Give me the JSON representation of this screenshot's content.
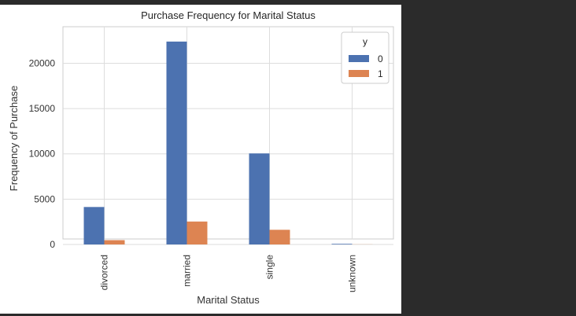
{
  "chart_data": {
    "type": "bar",
    "title": "Purchase Frequency for Marital Status",
    "xlabel": "Marital Status",
    "ylabel": "Frequency of Purchase",
    "categories": [
      "divorced",
      "married",
      "single",
      "unknown"
    ],
    "series": [
      {
        "name": "0",
        "values": [
          4136,
          22396,
          10049,
          68
        ],
        "color": "#4c72b0"
      },
      {
        "name": "1",
        "values": [
          476,
          2532,
          1620,
          12
        ],
        "color": "#dd8452"
      }
    ],
    "ylim": [
      0,
      23600
    ],
    "yticks": [
      "0",
      "5000",
      "10000",
      "15000",
      "20000"
    ],
    "grid": true,
    "legend": {
      "title": "y",
      "placement": "top-right"
    }
  }
}
